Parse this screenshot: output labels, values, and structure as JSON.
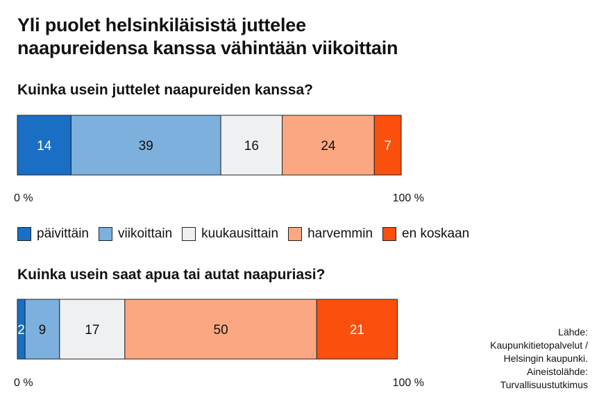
{
  "title_line1": "Yli puolet helsinkiläisistä juttelee",
  "title_line2": "naapureidensa kanssa vähintään viikoittain",
  "legend": [
    {
      "label": "päivittäin",
      "color": "#1a6fc4"
    },
    {
      "label": "viikoittain",
      "color": "#7db0dc"
    },
    {
      "label": "kuukausittain",
      "color": "#eff0f2"
    },
    {
      "label": "harvemmin",
      "color": "#fba882"
    },
    {
      "label": "en koskaan",
      "color": "#fb4f0d"
    }
  ],
  "chart_data": [
    {
      "type": "bar",
      "orientation": "horizontal-stacked-100",
      "title": "Kuinka usein juttelet naapureiden kanssa?",
      "categories": [
        "päivittäin",
        "viikoittain",
        "kuukausittain",
        "harvemmin",
        "en koskaan"
      ],
      "values": [
        14,
        39,
        16,
        24,
        7
      ],
      "value_labels": [
        "14",
        "39",
        "16",
        "24",
        "7"
      ],
      "xlim": [
        0,
        100
      ],
      "tick_labels": [
        "0 %",
        "100 %"
      ]
    },
    {
      "type": "bar",
      "orientation": "horizontal-stacked-100",
      "title": "Kuinka usein saat apua tai autat naapuriasi?",
      "categories": [
        "päivittäin",
        "viikoittain",
        "kuukausittain",
        "harvemmin",
        "en koskaan"
      ],
      "values": [
        2,
        9,
        17,
        50,
        21
      ],
      "value_labels": [
        "2",
        "9",
        "17",
        "50",
        "21"
      ],
      "xlim": [
        0,
        100
      ],
      "tick_labels": [
        "0 %",
        "100 %"
      ]
    }
  ],
  "source": [
    "Lähde:",
    "Kaupunkitietopalvelut /",
    "Helsingin kaupunki.",
    "Aineistolähde:",
    "Turvallisuustutkimus"
  ]
}
